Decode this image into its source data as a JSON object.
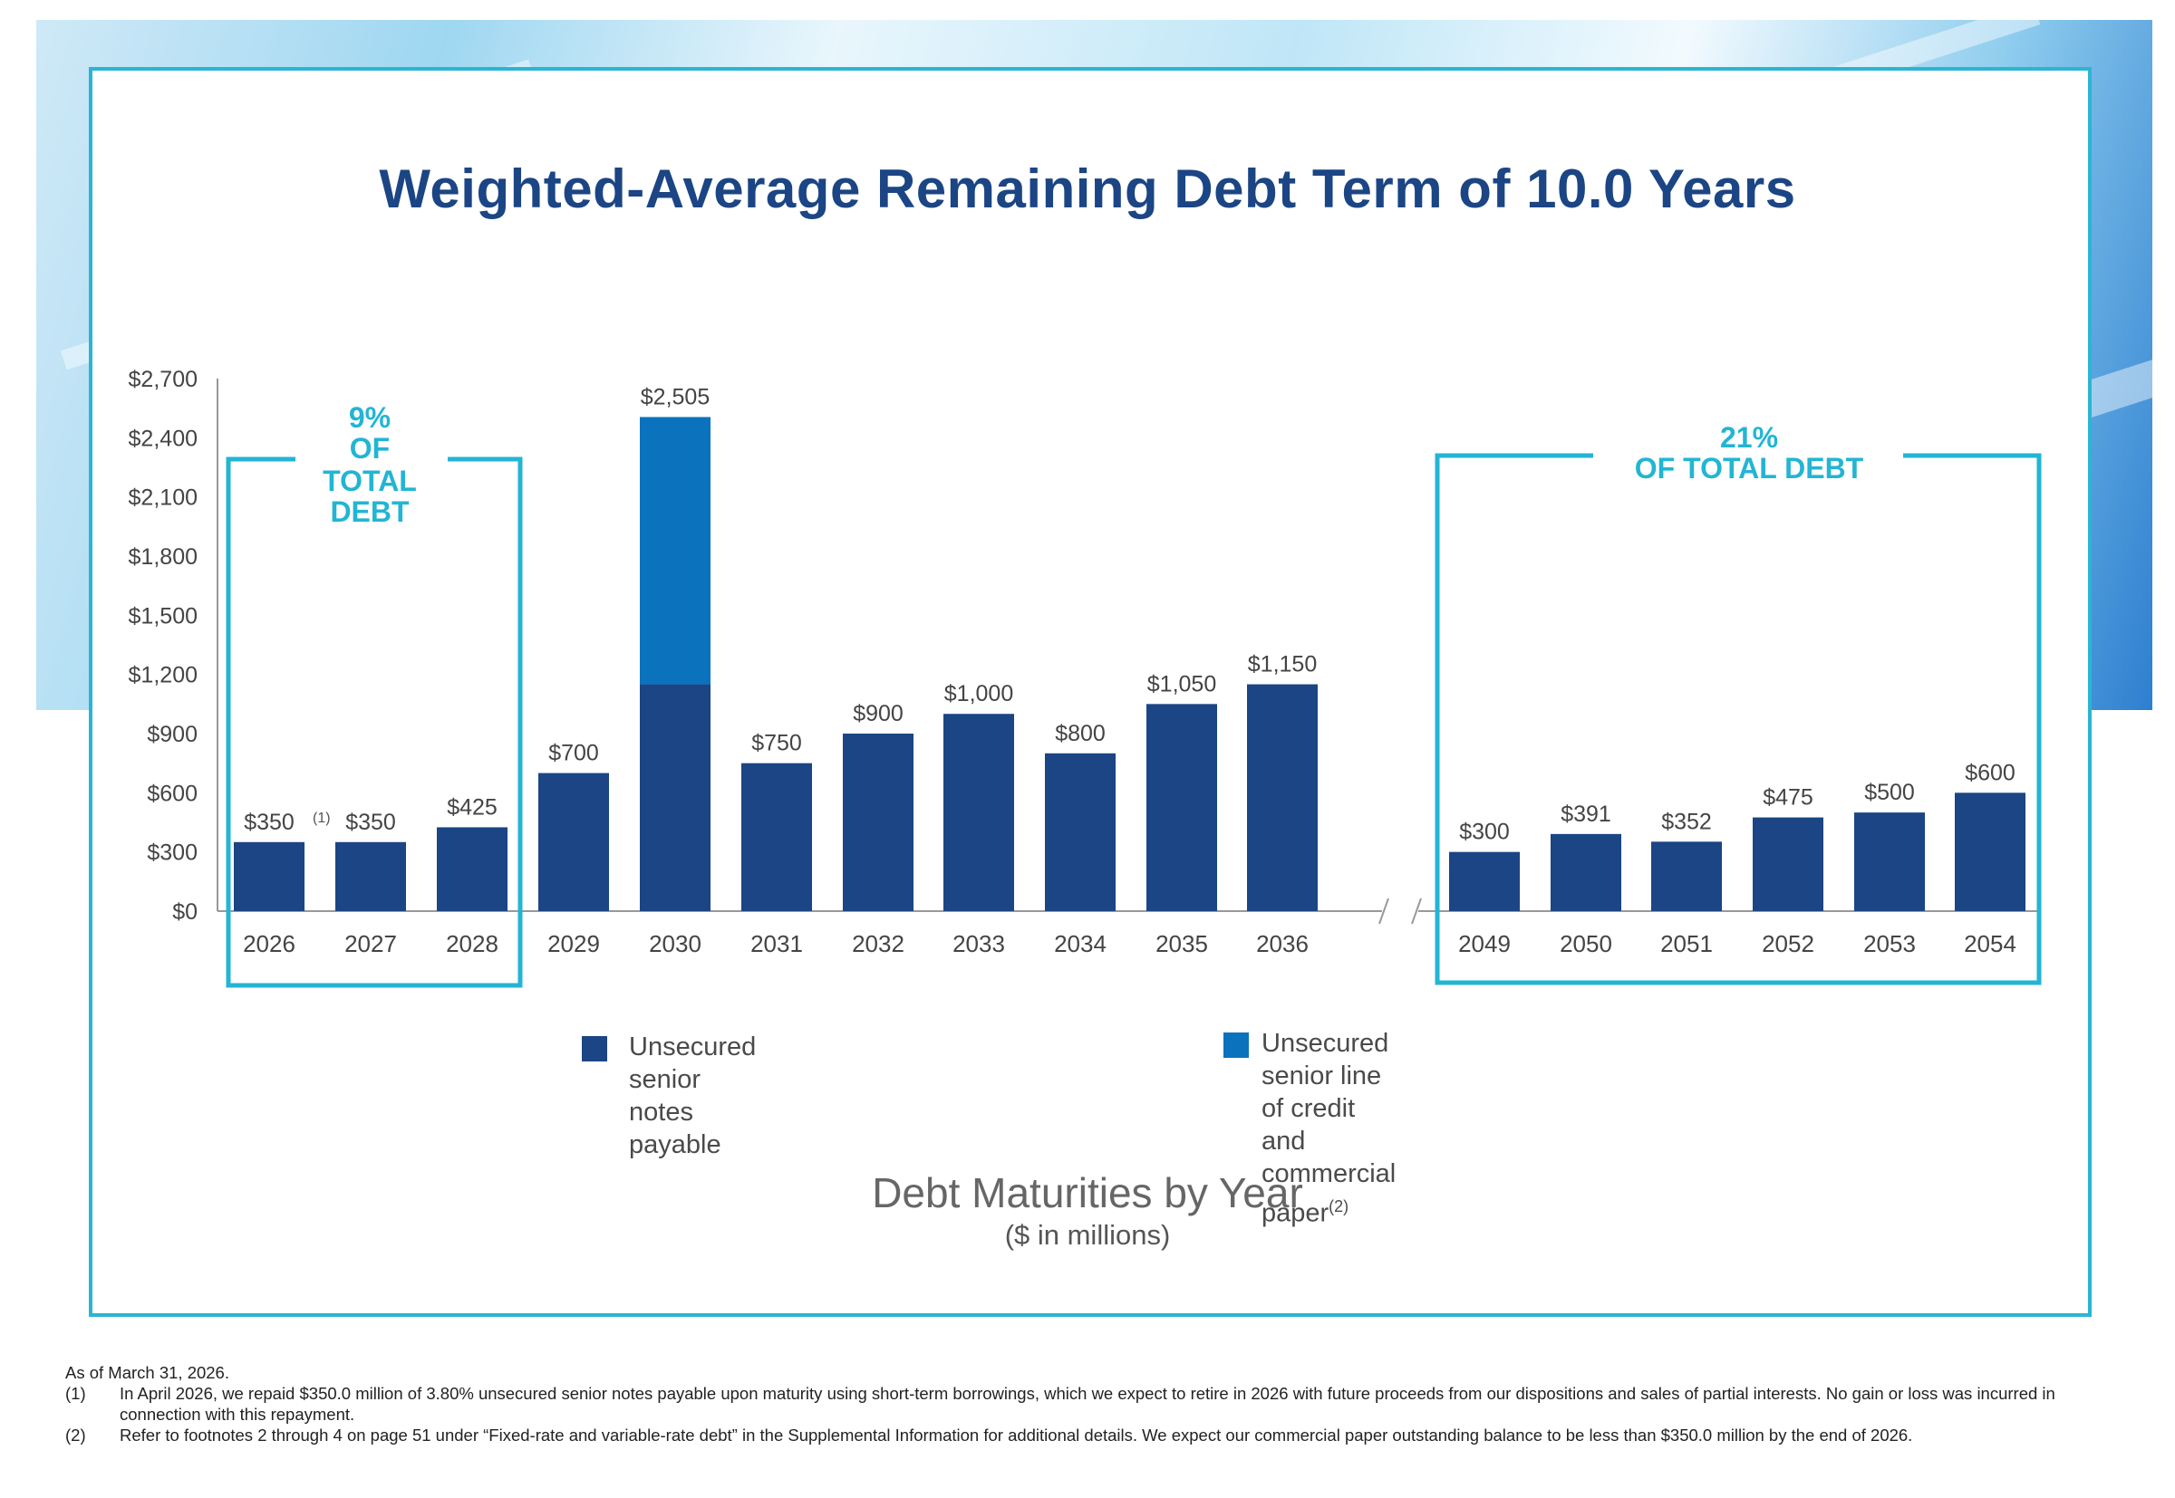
{
  "title": "Weighted-Average Remaining Debt Term of 10.0 Years",
  "colors": {
    "notes": "#1b4584",
    "credit": "#0b72bd",
    "accent": "#23b5d3",
    "frame": "#2bb5d3"
  },
  "chart_data": {
    "type": "bar",
    "stacked": true,
    "categories": [
      "2026",
      "2027",
      "2028",
      "2029",
      "2030",
      "2031",
      "2032",
      "2033",
      "2034",
      "2035",
      "2036",
      "2049",
      "2050",
      "2051",
      "2052",
      "2053",
      "2054"
    ],
    "series": [
      {
        "name": "Unsecured senior notes payable",
        "color": "#1b4584",
        "values": [
          350,
          350,
          425,
          700,
          1150,
          750,
          900,
          1000,
          800,
          1050,
          1150,
          300,
          391,
          352,
          475,
          500,
          600
        ]
      },
      {
        "name": "Unsecured senior line of credit and commercial paper",
        "color": "#0b72bd",
        "values": [
          0,
          0,
          0,
          0,
          1355,
          0,
          0,
          0,
          0,
          0,
          0,
          0,
          0,
          0,
          0,
          0,
          0
        ]
      }
    ],
    "data_labels": [
      "$350",
      "$350",
      "$425",
      "$700",
      "$2,505",
      "$750",
      "$900",
      "$1,000",
      "$800",
      "$1,050",
      "$1,150",
      "$300",
      "$391",
      "$352",
      "$475",
      "$500",
      "$600"
    ],
    "label_notes": {
      "0": "(1)"
    },
    "ylim": [
      0,
      2700
    ],
    "yticks": [
      "$0",
      "$300",
      "$600",
      "$900",
      "$1,200",
      "$1,500",
      "$1,800",
      "$2,100",
      "$2,400",
      "$2,700"
    ],
    "axis_break": "between 2036 and 2049",
    "annotations": [
      {
        "text_lines": [
          "9%",
          "OF",
          "TOTAL",
          "DEBT"
        ],
        "covers": [
          "2026",
          "2027",
          "2028"
        ]
      },
      {
        "text_lines": [
          "21%",
          "OF TOTAL DEBT"
        ],
        "covers": [
          "2049",
          "2050",
          "2051",
          "2052",
          "2053",
          "2054"
        ]
      }
    ],
    "xlabel": "",
    "ylabel": ""
  },
  "legend": {
    "items": [
      {
        "label": "Unsecured senior notes payable"
      },
      {
        "label_line1": "Unsecured senior line of credit",
        "label_line2": "and commercial paper",
        "note": "(2)"
      }
    ]
  },
  "subtitle": "Debt Maturities by Year",
  "subtitle_units": "($ in millions)",
  "footnotes": {
    "as_of": "As of March 31, 2026.",
    "items": [
      {
        "num": "(1)",
        "text": "In April 2026, we repaid $350.0 million of 3.80% unsecured senior notes payable upon maturity using short-term borrowings, which we expect to retire in 2026 with future proceeds from our dispositions and sales of partial interests. No gain or loss was incurred in connection with this repayment."
      },
      {
        "num": "(2)",
        "text": "Refer to footnotes 2 through 4 on page 51 under “Fixed-rate and variable-rate debt” in the Supplemental Information for additional details. We expect our commercial paper outstanding balance to be less than $350.0 million by the end of 2026."
      }
    ]
  }
}
